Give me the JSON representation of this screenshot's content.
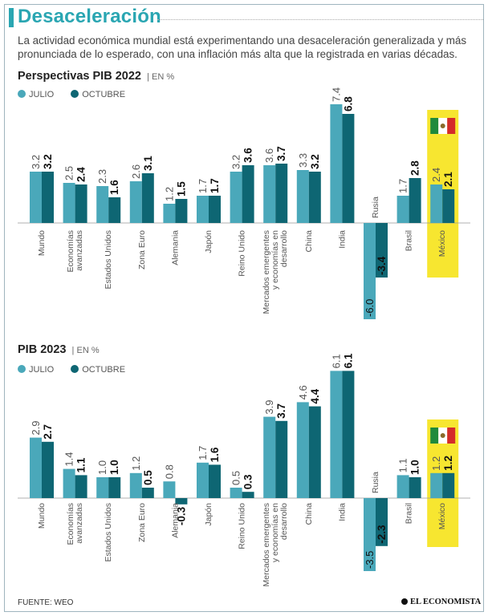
{
  "header": {
    "title": "Desaceleración",
    "lead": "La actividad económica mundial está experimentando una desaceleración generalizada y más pronunciada de lo esperado, con una inflación más alta que la registrada en varias décadas."
  },
  "colors": {
    "julio": "#4aa8ba",
    "octubre": "#0e6673",
    "highlight": "#f7e630",
    "title": "#2aa6b2"
  },
  "legend": {
    "julio": "JULIO",
    "octubre": "OCTUBRE"
  },
  "chart_data": [
    {
      "type": "bar",
      "title": "Perspectivas PIB 2022",
      "unit": "EN %",
      "categories": [
        "Mundo",
        "Economías avanzadas",
        "Estados Unidos",
        "Zona Euro",
        "Alemania",
        "Japón",
        "Reino Unido",
        "Mercados emergentes y economías en desarrollo",
        "China",
        "India",
        "Rusia",
        "Brasil",
        "México"
      ],
      "series": [
        {
          "name": "JULIO",
          "values": [
            3.2,
            2.5,
            2.3,
            2.6,
            1.2,
            1.7,
            3.2,
            3.6,
            3.3,
            7.4,
            -6.0,
            1.7,
            2.4
          ]
        },
        {
          "name": "OCTUBRE",
          "values": [
            3.2,
            2.4,
            1.6,
            3.1,
            1.5,
            1.7,
            3.6,
            3.7,
            3.2,
            6.8,
            -3.4,
            2.8,
            2.1
          ]
        }
      ],
      "value_labels": {
        "JULIO": [
          "3.2",
          "2.5",
          "2.3",
          "2.6",
          "1.2",
          "1.7",
          "3.2",
          "3.6",
          "3.3",
          "7.4",
          "-6.0",
          "1.7",
          "2.4"
        ],
        "OCTUBRE": [
          "3.2",
          "2.4",
          "1.6",
          "3.1",
          "1.5",
          "1.7",
          "3.6",
          "3.7",
          "3.2",
          "6.8",
          "-3.4",
          "2.8",
          "2.1"
        ]
      },
      "highlight": "México"
    },
    {
      "type": "bar",
      "title": "PIB 2023",
      "unit": "EN %",
      "categories": [
        "Mundo",
        "Economías avanzadas",
        "Estados Unidos",
        "Zona Euro",
        "Alemania",
        "Japón",
        "Reino Unido",
        "Mercados emergentes y economías en desarrollo",
        "China",
        "India",
        "Rusia",
        "Brasil",
        "México"
      ],
      "series": [
        {
          "name": "JULIO",
          "values": [
            2.9,
            1.4,
            1.0,
            1.2,
            0.8,
            1.7,
            0.5,
            3.9,
            4.6,
            6.1,
            -3.5,
            1.1,
            1.2
          ]
        },
        {
          "name": "OCTUBRE",
          "values": [
            2.7,
            1.1,
            1.0,
            0.5,
            -0.3,
            1.6,
            0.3,
            3.7,
            4.4,
            6.1,
            -2.3,
            1.0,
            1.2
          ]
        }
      ],
      "value_labels": {
        "JULIO": [
          "2.9",
          "1.4",
          "1.0",
          "1.2",
          "0.8",
          "1.7",
          "0.5",
          "3.9",
          "4.6",
          "6.1",
          "-3.5",
          "1.1",
          "1.2"
        ],
        "OCTUBRE": [
          "2.7",
          "1.1",
          "1.0",
          "0.5",
          "-0.3",
          "1.6",
          "0.3",
          "3.7",
          "4.4",
          "6.1",
          "-2.3",
          "1.0",
          "1.2"
        ]
      },
      "highlight": "México"
    }
  ],
  "footer": {
    "source": "FUENTE: WEO",
    "brand": "EL ECONOMISTA"
  }
}
